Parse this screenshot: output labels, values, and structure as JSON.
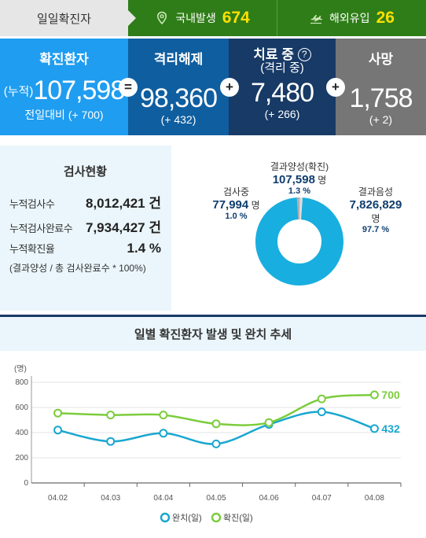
{
  "daily": {
    "title": "일일확진자",
    "domestic_label": "국내발생",
    "domestic_value": "674",
    "domestic_icon": "location-pin-icon",
    "overseas_label": "해외유입",
    "overseas_value": "26",
    "overseas_icon": "airplane-icon"
  },
  "stats": {
    "confirmed": {
      "label": "확진환자",
      "prefix": "(누적)",
      "value": "107,598",
      "diff": "전일대비 (+ 700)"
    },
    "released": {
      "label": "격리해제",
      "value": "98,360",
      "diff": "(+ 432)"
    },
    "treatment": {
      "label": "치료 중",
      "sub": "(격리 중)",
      "help": "?",
      "value": "7,480",
      "diff": "(+ 266)"
    },
    "deaths": {
      "label": "사망",
      "value": "1,758",
      "diff": "(+ 2)"
    },
    "op_equals": "=",
    "op_plus": "+"
  },
  "tests": {
    "title": "검사현황",
    "rows": [
      {
        "label": "누적검사수",
        "value": "8,012,421 건"
      },
      {
        "label": "누적검사완료수",
        "value": "7,934,427 건"
      },
      {
        "label": "누적확진율",
        "value": "1.4 %"
      }
    ],
    "note": "(결과양성 / 총 검사완료수 * 100%)",
    "donut": {
      "positive": {
        "label": "결과양성(확진)",
        "value": "107,598",
        "unit": "명",
        "pct": "1.3 %",
        "fraction": 0.013,
        "color": "#b0b0b0"
      },
      "testing": {
        "label": "검사중",
        "value": "77,994",
        "unit": "명",
        "pct": "1.0 %",
        "fraction": 0.01,
        "color": "#dddddd"
      },
      "negative": {
        "label": "결과음성",
        "value": "7,826,829",
        "unit": "명",
        "pct": "97.7 %",
        "fraction": 0.977,
        "color": "#18aee0"
      }
    }
  },
  "chart_data": {
    "type": "line",
    "title": "일별 확진환자 발생 및 완치 추세",
    "ylabel": "(명)",
    "ylim": [
      0,
      800
    ],
    "yticks": [
      0,
      200,
      400,
      600,
      800
    ],
    "categories": [
      "04.02",
      "04.03",
      "04.04",
      "04.05",
      "04.06",
      "04.07",
      "04.08"
    ],
    "series": [
      {
        "name": "완치(일)",
        "color": "#1aa7d0",
        "values": [
          420,
          330,
          395,
          310,
          465,
          565,
          432
        ]
      },
      {
        "name": "확진(일)",
        "color": "#7ccc3c",
        "values": [
          555,
          540,
          540,
          470,
          480,
          668,
          700
        ]
      }
    ],
    "end_labels": [
      "432",
      "700"
    ],
    "legend": "bottom-center",
    "grid": true
  }
}
